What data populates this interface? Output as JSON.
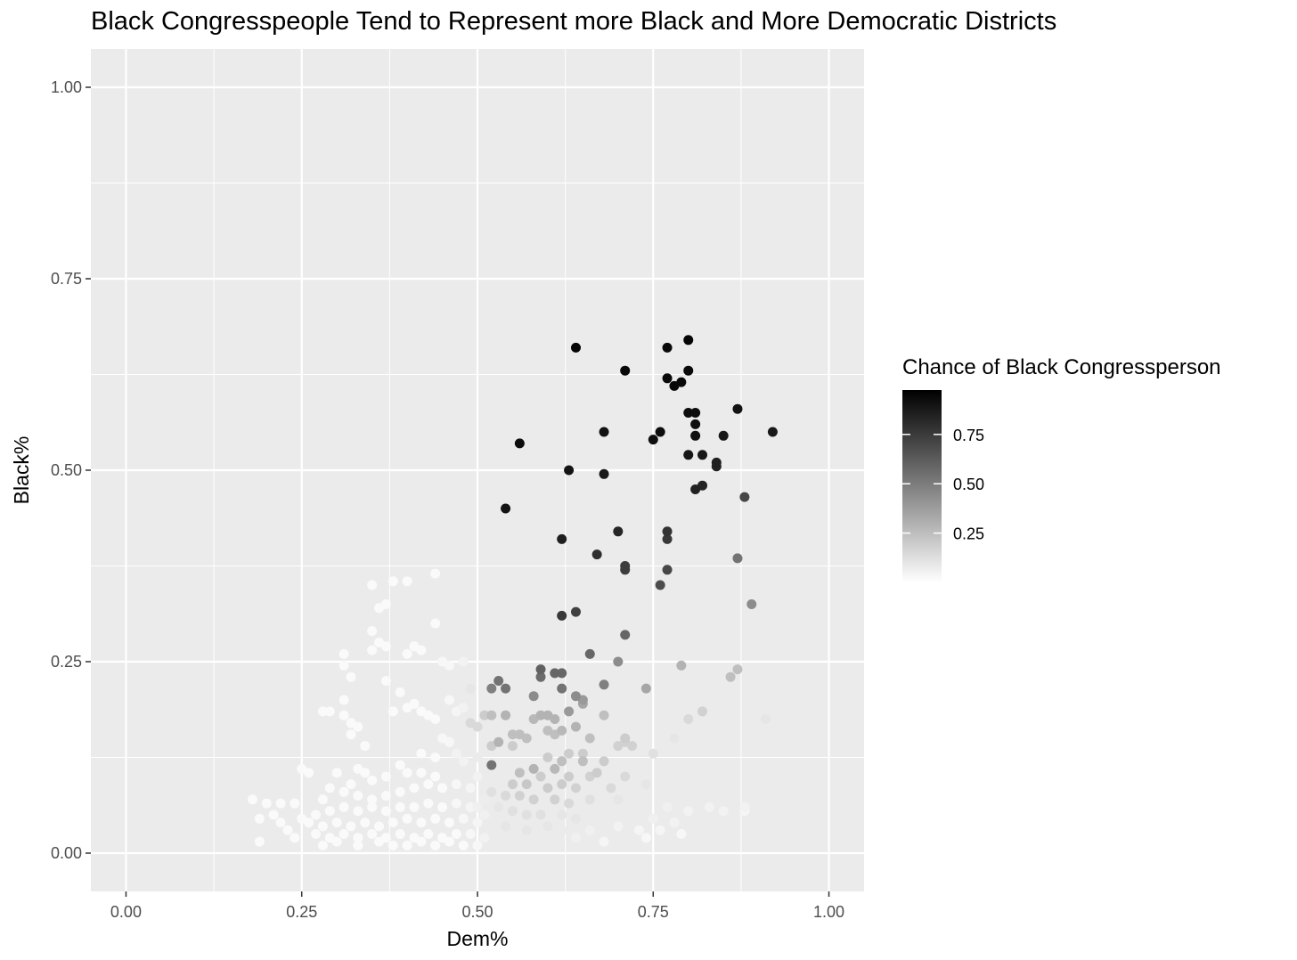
{
  "chart_data": {
    "type": "scatter",
    "title": "Black Congresspeople Tend to Represent more Black and More Democratic Districts",
    "xlabel": "Dem%",
    "ylabel": "Black%",
    "xlim": [
      -0.05,
      1.05
    ],
    "ylim": [
      -0.05,
      1.05
    ],
    "x_ticks": [
      "0.00",
      "0.25",
      "0.50",
      "0.75",
      "1.00"
    ],
    "y_ticks": [
      "0.00",
      "0.25",
      "0.50",
      "0.75",
      "1.00"
    ],
    "grid": true,
    "panel_color": "#ebebeb",
    "color_scale": {
      "low": "#ffffff",
      "high": "#000000"
    },
    "legend": {
      "title": "Chance of Black Congressperson",
      "position": "right",
      "labels": [
        "0.75",
        "0.50",
        "0.25"
      ]
    },
    "points": [
      [
        0.64,
        0.66,
        0.98
      ],
      [
        0.8,
        0.67,
        0.98
      ],
      [
        0.77,
        0.66,
        0.97
      ],
      [
        0.71,
        0.63,
        0.97
      ],
      [
        0.77,
        0.62,
        0.96
      ],
      [
        0.79,
        0.615,
        0.97
      ],
      [
        0.78,
        0.61,
        0.97
      ],
      [
        0.8,
        0.63,
        0.96
      ],
      [
        0.8,
        0.575,
        0.95
      ],
      [
        0.81,
        0.575,
        0.95
      ],
      [
        0.87,
        0.58,
        0.93
      ],
      [
        0.92,
        0.55,
        0.9
      ],
      [
        0.81,
        0.56,
        0.94
      ],
      [
        0.81,
        0.545,
        0.93
      ],
      [
        0.76,
        0.55,
        0.95
      ],
      [
        0.75,
        0.54,
        0.94
      ],
      [
        0.68,
        0.55,
        0.93
      ],
      [
        0.56,
        0.535,
        0.95
      ],
      [
        0.85,
        0.545,
        0.9
      ],
      [
        0.8,
        0.52,
        0.91
      ],
      [
        0.82,
        0.52,
        0.9
      ],
      [
        0.84,
        0.51,
        0.88
      ],
      [
        0.84,
        0.505,
        0.87
      ],
      [
        0.63,
        0.5,
        0.92
      ],
      [
        0.68,
        0.495,
        0.9
      ],
      [
        0.82,
        0.48,
        0.86
      ],
      [
        0.81,
        0.475,
        0.87
      ],
      [
        0.88,
        0.465,
        0.72
      ],
      [
        0.54,
        0.45,
        0.92
      ],
      [
        0.7,
        0.42,
        0.85
      ],
      [
        0.77,
        0.42,
        0.8
      ],
      [
        0.77,
        0.41,
        0.78
      ],
      [
        0.62,
        0.41,
        0.88
      ],
      [
        0.67,
        0.39,
        0.82
      ],
      [
        0.71,
        0.375,
        0.76
      ],
      [
        0.71,
        0.37,
        0.76
      ],
      [
        0.77,
        0.37,
        0.72
      ],
      [
        0.76,
        0.35,
        0.7
      ],
      [
        0.87,
        0.385,
        0.55
      ],
      [
        0.89,
        0.325,
        0.45
      ],
      [
        0.64,
        0.315,
        0.75
      ],
      [
        0.62,
        0.31,
        0.78
      ],
      [
        0.71,
        0.285,
        0.6
      ],
      [
        0.66,
        0.26,
        0.6
      ],
      [
        0.7,
        0.25,
        0.45
      ],
      [
        0.59,
        0.24,
        0.62
      ],
      [
        0.61,
        0.235,
        0.6
      ],
      [
        0.62,
        0.235,
        0.6
      ],
      [
        0.79,
        0.245,
        0.3
      ],
      [
        0.87,
        0.24,
        0.25
      ],
      [
        0.86,
        0.23,
        0.25
      ],
      [
        0.53,
        0.225,
        0.55
      ],
      [
        0.59,
        0.23,
        0.58
      ],
      [
        0.52,
        0.215,
        0.5
      ],
      [
        0.54,
        0.215,
        0.55
      ],
      [
        0.62,
        0.215,
        0.55
      ],
      [
        0.68,
        0.22,
        0.5
      ],
      [
        0.74,
        0.215,
        0.35
      ],
      [
        0.58,
        0.205,
        0.45
      ],
      [
        0.64,
        0.205,
        0.45
      ],
      [
        0.65,
        0.2,
        0.4
      ],
      [
        0.65,
        0.195,
        0.35
      ],
      [
        0.63,
        0.185,
        0.4
      ],
      [
        0.51,
        0.18,
        0.2
      ],
      [
        0.52,
        0.18,
        0.25
      ],
      [
        0.54,
        0.18,
        0.3
      ],
      [
        0.58,
        0.175,
        0.28
      ],
      [
        0.59,
        0.18,
        0.3
      ],
      [
        0.6,
        0.18,
        0.3
      ],
      [
        0.61,
        0.175,
        0.3
      ],
      [
        0.68,
        0.18,
        0.25
      ],
      [
        0.8,
        0.175,
        0.15
      ],
      [
        0.82,
        0.185,
        0.18
      ],
      [
        0.91,
        0.175,
        0.1
      ],
      [
        0.49,
        0.17,
        0.15
      ],
      [
        0.5,
        0.165,
        0.15
      ],
      [
        0.6,
        0.16,
        0.25
      ],
      [
        0.61,
        0.155,
        0.25
      ],
      [
        0.62,
        0.16,
        0.28
      ],
      [
        0.64,
        0.165,
        0.3
      ],
      [
        0.55,
        0.155,
        0.25
      ],
      [
        0.56,
        0.155,
        0.25
      ],
      [
        0.57,
        0.15,
        0.25
      ],
      [
        0.53,
        0.145,
        0.3
      ],
      [
        0.52,
        0.14,
        0.2
      ],
      [
        0.55,
        0.14,
        0.2
      ],
      [
        0.66,
        0.15,
        0.25
      ],
      [
        0.71,
        0.15,
        0.2
      ],
      [
        0.71,
        0.145,
        0.18
      ],
      [
        0.72,
        0.14,
        0.18
      ],
      [
        0.7,
        0.14,
        0.18
      ],
      [
        0.78,
        0.15,
        0.1
      ],
      [
        0.65,
        0.13,
        0.2
      ],
      [
        0.63,
        0.13,
        0.2
      ],
      [
        0.75,
        0.13,
        0.12
      ],
      [
        0.6,
        0.125,
        0.2
      ],
      [
        0.62,
        0.12,
        0.25
      ],
      [
        0.65,
        0.12,
        0.25
      ],
      [
        0.68,
        0.12,
        0.2
      ],
      [
        0.52,
        0.115,
        0.55
      ],
      [
        0.58,
        0.11,
        0.3
      ],
      [
        0.56,
        0.105,
        0.25
      ],
      [
        0.61,
        0.11,
        0.28
      ],
      [
        0.59,
        0.1,
        0.2
      ],
      [
        0.63,
        0.1,
        0.2
      ],
      [
        0.66,
        0.1,
        0.18
      ],
      [
        0.67,
        0.105,
        0.2
      ],
      [
        0.71,
        0.1,
        0.15
      ],
      [
        0.82,
        0.1,
        0.08
      ],
      [
        0.55,
        0.09,
        0.2
      ],
      [
        0.57,
        0.09,
        0.22
      ],
      [
        0.6,
        0.085,
        0.2
      ],
      [
        0.62,
        0.09,
        0.2
      ],
      [
        0.64,
        0.085,
        0.18
      ],
      [
        0.69,
        0.085,
        0.15
      ],
      [
        0.74,
        0.09,
        0.1
      ],
      [
        0.52,
        0.08,
        0.12
      ],
      [
        0.54,
        0.075,
        0.15
      ],
      [
        0.56,
        0.075,
        0.18
      ],
      [
        0.58,
        0.07,
        0.18
      ],
      [
        0.61,
        0.07,
        0.18
      ],
      [
        0.63,
        0.065,
        0.15
      ],
      [
        0.66,
        0.07,
        0.12
      ],
      [
        0.7,
        0.07,
        0.1
      ],
      [
        0.72,
        0.065,
        0.08
      ],
      [
        0.77,
        0.06,
        0.06
      ],
      [
        0.8,
        0.055,
        0.05
      ],
      [
        0.83,
        0.06,
        0.05
      ],
      [
        0.85,
        0.055,
        0.05
      ],
      [
        0.88,
        0.06,
        0.05
      ],
      [
        0.88,
        0.055,
        0.04
      ],
      [
        0.53,
        0.06,
        0.1
      ],
      [
        0.55,
        0.055,
        0.12
      ],
      [
        0.57,
        0.05,
        0.12
      ],
      [
        0.59,
        0.05,
        0.12
      ],
      [
        0.62,
        0.05,
        0.1
      ],
      [
        0.64,
        0.045,
        0.1
      ],
      [
        0.67,
        0.05,
        0.08
      ],
      [
        0.69,
        0.045,
        0.08
      ],
      [
        0.75,
        0.045,
        0.06
      ],
      [
        0.78,
        0.04,
        0.05
      ],
      [
        0.52,
        0.04,
        0.08
      ],
      [
        0.54,
        0.035,
        0.1
      ],
      [
        0.57,
        0.03,
        0.1
      ],
      [
        0.6,
        0.035,
        0.1
      ],
      [
        0.63,
        0.03,
        0.08
      ],
      [
        0.66,
        0.03,
        0.06
      ],
      [
        0.7,
        0.035,
        0.05
      ],
      [
        0.73,
        0.03,
        0.04
      ],
      [
        0.76,
        0.03,
        0.04
      ],
      [
        0.79,
        0.025,
        0.03
      ],
      [
        0.58,
        0.02,
        0.08
      ],
      [
        0.61,
        0.02,
        0.08
      ],
      [
        0.64,
        0.02,
        0.06
      ],
      [
        0.68,
        0.015,
        0.04
      ],
      [
        0.74,
        0.02,
        0.03
      ],
      [
        0.55,
        0.015,
        0.08
      ],
      [
        0.51,
        0.02,
        0.05
      ],
      [
        0.35,
        0.35,
        0.02
      ],
      [
        0.38,
        0.355,
        0.02
      ],
      [
        0.4,
        0.355,
        0.02
      ],
      [
        0.44,
        0.365,
        0.02
      ],
      [
        0.37,
        0.325,
        0.02
      ],
      [
        0.36,
        0.32,
        0.02
      ],
      [
        0.44,
        0.3,
        0.02
      ],
      [
        0.35,
        0.29,
        0.02
      ],
      [
        0.36,
        0.275,
        0.02
      ],
      [
        0.37,
        0.27,
        0.02
      ],
      [
        0.35,
        0.265,
        0.02
      ],
      [
        0.41,
        0.27,
        0.02
      ],
      [
        0.42,
        0.265,
        0.02
      ],
      [
        0.4,
        0.26,
        0.02
      ],
      [
        0.31,
        0.26,
        0.02
      ],
      [
        0.31,
        0.245,
        0.02
      ],
      [
        0.32,
        0.23,
        0.02
      ],
      [
        0.45,
        0.25,
        0.03
      ],
      [
        0.46,
        0.245,
        0.03
      ],
      [
        0.48,
        0.25,
        0.05
      ],
      [
        0.37,
        0.225,
        0.02
      ],
      [
        0.39,
        0.21,
        0.02
      ],
      [
        0.41,
        0.195,
        0.02
      ],
      [
        0.42,
        0.185,
        0.02
      ],
      [
        0.43,
        0.18,
        0.02
      ],
      [
        0.44,
        0.175,
        0.02
      ],
      [
        0.4,
        0.19,
        0.02
      ],
      [
        0.38,
        0.185,
        0.02
      ],
      [
        0.31,
        0.2,
        0.02
      ],
      [
        0.28,
        0.185,
        0.02
      ],
      [
        0.29,
        0.185,
        0.02
      ],
      [
        0.31,
        0.18,
        0.02
      ],
      [
        0.32,
        0.17,
        0.02
      ],
      [
        0.33,
        0.165,
        0.02
      ],
      [
        0.32,
        0.155,
        0.02
      ],
      [
        0.34,
        0.14,
        0.02
      ],
      [
        0.46,
        0.2,
        0.03
      ],
      [
        0.47,
        0.185,
        0.04
      ],
      [
        0.48,
        0.19,
        0.05
      ],
      [
        0.45,
        0.15,
        0.03
      ],
      [
        0.46,
        0.145,
        0.03
      ],
      [
        0.42,
        0.13,
        0.02
      ],
      [
        0.44,
        0.125,
        0.02
      ],
      [
        0.39,
        0.115,
        0.02
      ],
      [
        0.4,
        0.105,
        0.02
      ],
      [
        0.42,
        0.105,
        0.02
      ],
      [
        0.44,
        0.1,
        0.02
      ],
      [
        0.3,
        0.105,
        0.02
      ],
      [
        0.25,
        0.11,
        0.02
      ],
      [
        0.26,
        0.105,
        0.02
      ],
      [
        0.33,
        0.11,
        0.02
      ],
      [
        0.34,
        0.105,
        0.02
      ],
      [
        0.35,
        0.095,
        0.02
      ],
      [
        0.37,
        0.1,
        0.02
      ],
      [
        0.32,
        0.09,
        0.02
      ],
      [
        0.31,
        0.08,
        0.02
      ],
      [
        0.29,
        0.085,
        0.02
      ],
      [
        0.33,
        0.075,
        0.02
      ],
      [
        0.35,
        0.07,
        0.02
      ],
      [
        0.37,
        0.075,
        0.02
      ],
      [
        0.39,
        0.08,
        0.02
      ],
      [
        0.41,
        0.085,
        0.02
      ],
      [
        0.43,
        0.09,
        0.02
      ],
      [
        0.45,
        0.085,
        0.02
      ],
      [
        0.47,
        0.09,
        0.03
      ],
      [
        0.49,
        0.085,
        0.04
      ],
      [
        0.28,
        0.07,
        0.02
      ],
      [
        0.24,
        0.065,
        0.02
      ],
      [
        0.22,
        0.065,
        0.02
      ],
      [
        0.18,
        0.07,
        0.02
      ],
      [
        0.2,
        0.065,
        0.02
      ],
      [
        0.21,
        0.05,
        0.02
      ],
      [
        0.19,
        0.045,
        0.02
      ],
      [
        0.22,
        0.04,
        0.02
      ],
      [
        0.23,
        0.03,
        0.02
      ],
      [
        0.25,
        0.045,
        0.02
      ],
      [
        0.27,
        0.05,
        0.02
      ],
      [
        0.29,
        0.055,
        0.02
      ],
      [
        0.31,
        0.06,
        0.02
      ],
      [
        0.33,
        0.055,
        0.02
      ],
      [
        0.35,
        0.06,
        0.02
      ],
      [
        0.37,
        0.055,
        0.02
      ],
      [
        0.39,
        0.06,
        0.02
      ],
      [
        0.41,
        0.06,
        0.02
      ],
      [
        0.43,
        0.065,
        0.02
      ],
      [
        0.45,
        0.06,
        0.02
      ],
      [
        0.47,
        0.065,
        0.03
      ],
      [
        0.49,
        0.06,
        0.04
      ],
      [
        0.26,
        0.04,
        0.02
      ],
      [
        0.28,
        0.035,
        0.02
      ],
      [
        0.3,
        0.04,
        0.02
      ],
      [
        0.32,
        0.035,
        0.02
      ],
      [
        0.34,
        0.04,
        0.02
      ],
      [
        0.36,
        0.035,
        0.02
      ],
      [
        0.38,
        0.04,
        0.02
      ],
      [
        0.4,
        0.045,
        0.02
      ],
      [
        0.42,
        0.04,
        0.02
      ],
      [
        0.44,
        0.045,
        0.02
      ],
      [
        0.46,
        0.04,
        0.02
      ],
      [
        0.48,
        0.045,
        0.03
      ],
      [
        0.5,
        0.04,
        0.04
      ],
      [
        0.27,
        0.025,
        0.02
      ],
      [
        0.29,
        0.02,
        0.02
      ],
      [
        0.31,
        0.025,
        0.02
      ],
      [
        0.33,
        0.02,
        0.02
      ],
      [
        0.35,
        0.025,
        0.02
      ],
      [
        0.37,
        0.02,
        0.02
      ],
      [
        0.39,
        0.025,
        0.02
      ],
      [
        0.41,
        0.02,
        0.02
      ],
      [
        0.43,
        0.025,
        0.02
      ],
      [
        0.45,
        0.02,
        0.02
      ],
      [
        0.47,
        0.025,
        0.02
      ],
      [
        0.49,
        0.025,
        0.03
      ],
      [
        0.19,
        0.015,
        0.02
      ],
      [
        0.24,
        0.02,
        0.02
      ],
      [
        0.28,
        0.01,
        0.02
      ],
      [
        0.3,
        0.015,
        0.02
      ],
      [
        0.33,
        0.01,
        0.02
      ],
      [
        0.36,
        0.015,
        0.02
      ],
      [
        0.38,
        0.01,
        0.02
      ],
      [
        0.4,
        0.01,
        0.02
      ],
      [
        0.42,
        0.015,
        0.02
      ],
      [
        0.44,
        0.01,
        0.02
      ],
      [
        0.46,
        0.015,
        0.02
      ],
      [
        0.48,
        0.01,
        0.02
      ],
      [
        0.5,
        0.01,
        0.03
      ],
      [
        0.5,
        0.06,
        0.06
      ],
      [
        0.51,
        0.07,
        0.07
      ],
      [
        0.5,
        0.1,
        0.05
      ],
      [
        0.48,
        0.12,
        0.05
      ],
      [
        0.47,
        0.13,
        0.05
      ],
      [
        0.49,
        0.14,
        0.08
      ],
      [
        0.5,
        0.125,
        0.08
      ],
      [
        0.48,
        0.22,
        0.08
      ],
      [
        0.49,
        0.215,
        0.1
      ],
      [
        0.51,
        0.05,
        0.06
      ]
    ]
  }
}
